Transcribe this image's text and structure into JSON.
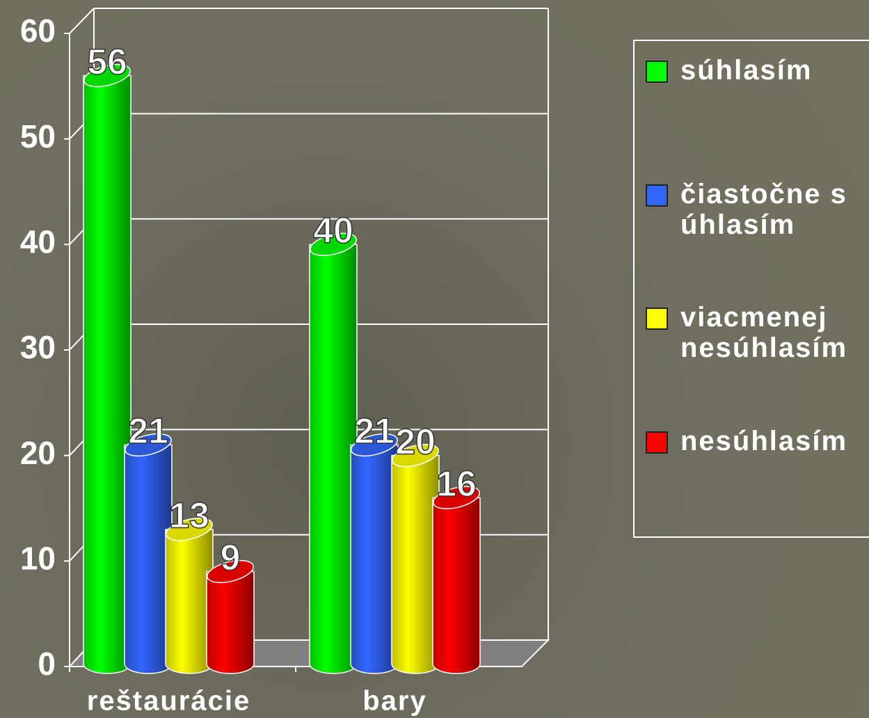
{
  "chart_data": {
    "type": "bar",
    "categories": [
      "reštaurácie",
      "bary"
    ],
    "series": [
      {
        "name": "súhlasím",
        "color": "#00ff00",
        "values": [
          56,
          40
        ]
      },
      {
        "name": "čiastočne súhlasím",
        "color": "#3366ff",
        "values": [
          21,
          21
        ]
      },
      {
        "name": "viacmenej nesúhlasím",
        "color": "#ffff00",
        "values": [
          13,
          20
        ]
      },
      {
        "name": "nesúhlasím",
        "color": "#ff0000",
        "values": [
          9,
          16
        ]
      }
    ],
    "ylim": [
      0,
      60
    ],
    "yticks": [
      0,
      10,
      20,
      30,
      40,
      50,
      60
    ],
    "grid": true,
    "legend": "right"
  }
}
